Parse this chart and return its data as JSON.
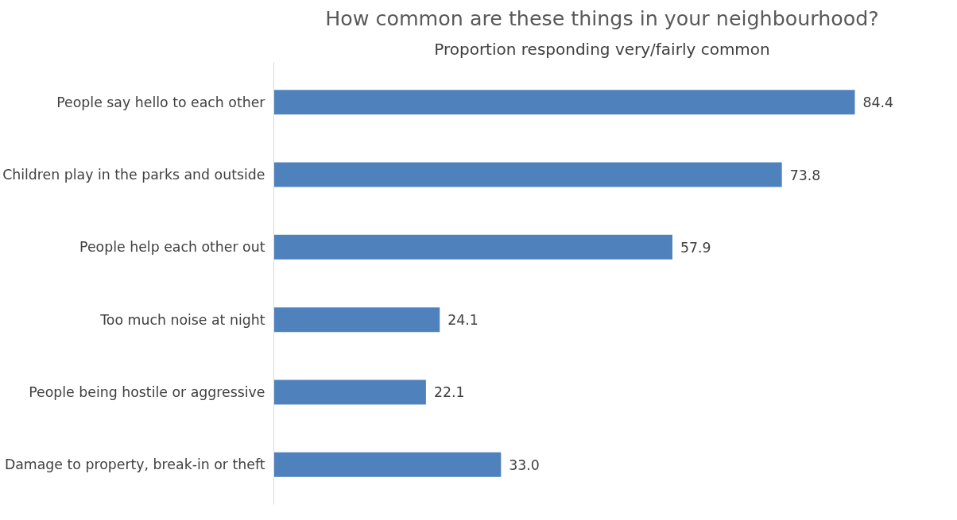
{
  "chart_data": {
    "type": "bar",
    "orientation": "horizontal",
    "title": "How common are these things in your neighbourhood?",
    "subtitle": "Proportion responding very/fairly common",
    "categories": [
      "People say hello to each other",
      "Children play in the parks and outside",
      "People help each other out",
      "Too much noise at night",
      "People being hostile or aggressive",
      "Damage to property, break-in or theft"
    ],
    "values": [
      84.4,
      73.8,
      57.9,
      24.1,
      22.1,
      33.0
    ],
    "value_labels": [
      "84.4",
      "73.8",
      "57.9",
      "24.1",
      "22.1",
      "33.0"
    ],
    "color": "#4f81bd",
    "grid": false,
    "tick_labels": "y"
  }
}
